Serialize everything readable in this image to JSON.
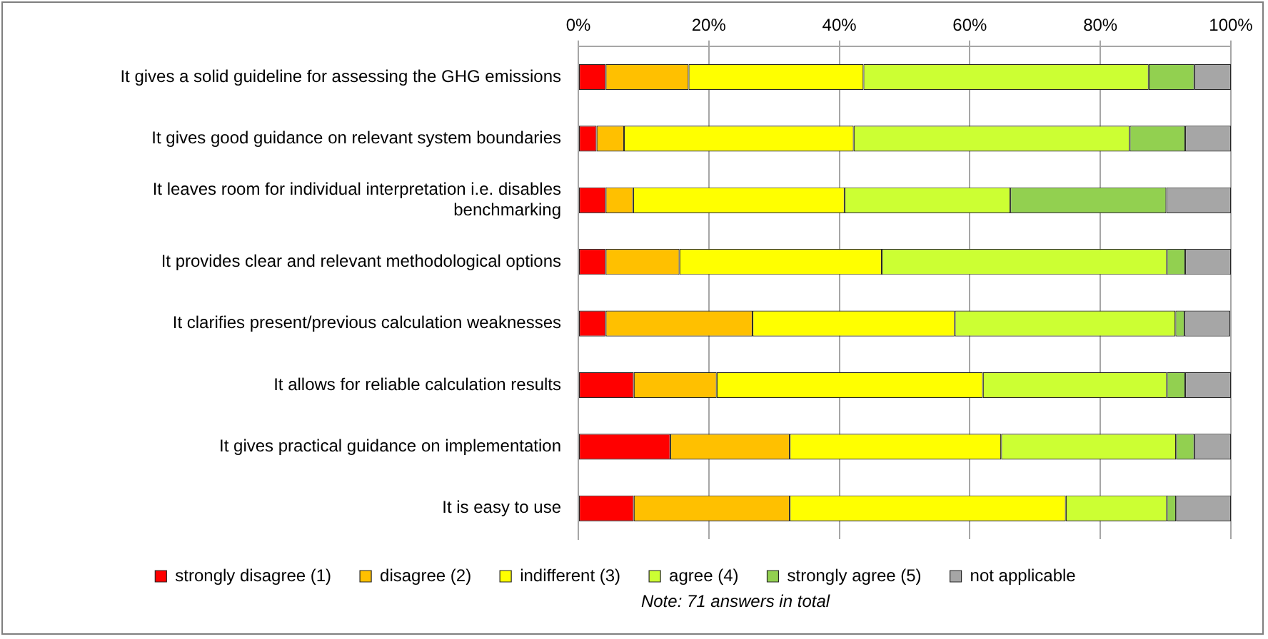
{
  "chart_data": {
    "type": "bar",
    "orientation": "horizontal",
    "stacked": true,
    "categories": [
      "It gives a solid guideline for assessing the GHG emissions",
      "It gives good guidance on relevant system boundaries",
      "It leaves room for individual interpretation i.e. disables benchmarking",
      "It provides clear and relevant methodological options",
      "It clarifies present/previous calculation weaknesses",
      "It allows for reliable calculation results",
      "It gives practical guidance on implementation",
      "It is easy to use"
    ],
    "series": [
      {
        "name": "strongly disagree (1)",
        "color": "#ff0000",
        "values": [
          4.2,
          2.8,
          4.2,
          4.2,
          4.2,
          8.5,
          14.1,
          8.5
        ]
      },
      {
        "name": "disagree (2)",
        "color": "#ffc000",
        "values": [
          12.7,
          4.2,
          4.2,
          11.3,
          22.5,
          12.7,
          18.3,
          23.9
        ]
      },
      {
        "name": "indifferent (3)",
        "color": "#ffff00",
        "values": [
          26.8,
          35.2,
          32.4,
          31.0,
          31.0,
          40.8,
          32.4,
          42.3
        ]
      },
      {
        "name": "agree (4)",
        "color": "#ccff33",
        "values": [
          43.7,
          42.3,
          25.4,
          43.7,
          33.8,
          28.2,
          26.8,
          15.5
        ]
      },
      {
        "name": "strongly agree (5)",
        "color": "#92d050",
        "values": [
          7.0,
          8.5,
          23.9,
          2.8,
          1.4,
          2.8,
          2.8,
          1.4
        ]
      },
      {
        "name": "not applicable",
        "color": "#a6a6a6",
        "values": [
          5.6,
          7.0,
          9.9,
          7.0,
          7.0,
          7.0,
          5.6,
          8.4
        ]
      }
    ],
    "xlim": [
      0,
      100
    ],
    "xticks": [
      {
        "value": 0,
        "label": "0%"
      },
      {
        "value": 20,
        "label": "20%"
      },
      {
        "value": 40,
        "label": "40%"
      },
      {
        "value": 60,
        "label": "60%"
      },
      {
        "value": 80,
        "label": "80%"
      },
      {
        "value": 100,
        "label": "100%"
      }
    ],
    "grid": "x",
    "legend": "bottom",
    "annotations": [
      "Note: 71 answers in total"
    ]
  }
}
